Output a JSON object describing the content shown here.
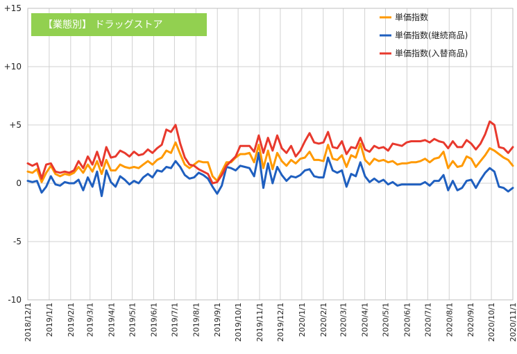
{
  "chart_data": {
    "type": "line",
    "title": "【業態別】 ドラッグストア",
    "title_bg_color": "#92d050",
    "ylim": [
      -10,
      15
    ],
    "yticks": [
      -10,
      -5,
      0,
      5,
      10,
      15
    ],
    "ytick_labels": [
      "-10",
      "-5",
      "0",
      "+5",
      "+10",
      "+15"
    ],
    "xticks": [
      "2018/12/1",
      "2019/1/1",
      "2019/2/1",
      "2019/3/1",
      "2019/4/1",
      "2019/5/1",
      "2019/6/1",
      "2019/7/1",
      "2019/8/1",
      "2019/9/1",
      "2019/10/1",
      "2019/11/1",
      "2019/12/1",
      "2020/1/1",
      "2020/2/1",
      "2020/3/1",
      "2020/4/1",
      "2020/5/1",
      "2020/6/1",
      "2020/7/1",
      "2020/8/1",
      "2020/9/1",
      "2020/10/1",
      "2020/11/1"
    ],
    "x_start": "2018-12-01",
    "x_end": "2020-11-01",
    "frequency": "weekly",
    "grid": true,
    "legend_position": "top-right",
    "series": [
      {
        "name": "単価指数",
        "color": "#ff9900",
        "values": [
          1.0,
          0.9,
          1.2,
          0.1,
          0.9,
          1.5,
          0.8,
          0.6,
          0.8,
          0.7,
          0.9,
          1.4,
          0.9,
          1.6,
          1.0,
          1.9,
          0.8,
          2.0,
          1.1,
          1.1,
          1.6,
          1.4,
          1.3,
          1.4,
          1.3,
          1.6,
          1.9,
          1.6,
          2.0,
          2.2,
          2.8,
          2.6,
          3.5,
          2.5,
          1.6,
          1.3,
          1.6,
          1.9,
          1.8,
          1.8,
          0.6,
          0.2,
          1.0,
          1.8,
          1.8,
          2.2,
          2.5,
          2.5,
          2.6,
          1.8,
          3.3,
          1.3,
          2.8,
          1.2,
          2.6,
          1.9,
          1.5,
          2.0,
          1.7,
          2.1,
          2.2,
          2.7,
          2.0,
          2.0,
          1.9,
          3.3,
          2.1,
          2.0,
          2.4,
          1.4,
          2.4,
          2.2,
          3.4,
          2.0,
          1.6,
          2.1,
          1.9,
          2.0,
          1.8,
          1.9,
          1.6,
          1.7,
          1.7,
          1.8,
          1.8,
          1.9,
          2.1,
          1.8,
          2.1,
          2.2,
          2.7,
          1.3,
          1.9,
          1.4,
          1.5,
          2.3,
          2.1,
          1.4,
          1.9,
          2.4,
          3.0,
          2.8,
          2.5,
          2.2,
          2.0,
          1.5
        ]
      },
      {
        "name": "単価指数(継続商品)",
        "color": "#1f5fbf",
        "values": [
          0.2,
          0.1,
          0.2,
          -0.8,
          -0.3,
          0.6,
          -0.1,
          -0.2,
          0.1,
          0.0,
          0.0,
          0.3,
          -0.6,
          0.5,
          -0.3,
          1.0,
          -1.1,
          1.1,
          0.1,
          -0.3,
          0.6,
          0.3,
          -0.1,
          0.2,
          0.0,
          0.5,
          0.8,
          0.5,
          1.1,
          1.0,
          1.4,
          1.3,
          1.9,
          1.4,
          0.7,
          0.4,
          0.5,
          0.9,
          0.7,
          0.4,
          -0.3,
          -0.9,
          -0.2,
          1.4,
          1.3,
          1.1,
          1.5,
          1.4,
          1.3,
          0.6,
          2.6,
          -0.4,
          1.7,
          0.0,
          1.4,
          0.7,
          0.2,
          0.6,
          0.5,
          0.7,
          1.1,
          1.2,
          0.6,
          0.5,
          0.5,
          2.2,
          1.1,
          0.9,
          1.1,
          -0.3,
          0.8,
          0.6,
          1.8,
          0.6,
          0.1,
          0.4,
          0.1,
          0.3,
          -0.1,
          0.1,
          -0.2,
          -0.1,
          -0.1,
          -0.1,
          -0.1,
          -0.1,
          0.1,
          -0.2,
          0.2,
          0.2,
          0.7,
          -0.6,
          0.2,
          -0.6,
          -0.4,
          0.2,
          0.3,
          -0.4,
          0.3,
          0.9,
          1.3,
          1.0,
          -0.3,
          -0.4,
          -0.7,
          -0.4
        ]
      },
      {
        "name": "単価指数(入替商品)",
        "color": "#e8392d",
        "values": [
          1.7,
          1.5,
          1.7,
          0.4,
          1.6,
          1.7,
          1.0,
          0.9,
          1.0,
          0.9,
          1.1,
          1.9,
          1.3,
          2.3,
          1.6,
          2.7,
          1.5,
          3.1,
          2.2,
          2.3,
          2.8,
          2.6,
          2.3,
          2.7,
          2.4,
          2.5,
          2.9,
          2.6,
          3.0,
          3.3,
          4.6,
          4.4,
          5.0,
          3.4,
          2.2,
          1.6,
          1.5,
          1.2,
          1.0,
          0.8,
          0.0,
          0.1,
          0.7,
          1.5,
          1.9,
          2.3,
          3.2,
          3.2,
          3.2,
          2.7,
          4.1,
          2.6,
          3.9,
          2.8,
          4.1,
          3.0,
          2.6,
          3.2,
          2.3,
          2.8,
          3.6,
          4.3,
          3.5,
          3.4,
          3.5,
          4.4,
          3.1,
          3.0,
          3.6,
          2.5,
          3.1,
          3.0,
          3.9,
          2.9,
          2.7,
          3.2,
          3.0,
          3.1,
          2.8,
          3.4,
          3.3,
          3.2,
          3.5,
          3.6,
          3.6,
          3.6,
          3.7,
          3.5,
          3.8,
          3.6,
          3.5,
          3.0,
          3.6,
          3.1,
          3.1,
          3.7,
          3.4,
          2.9,
          3.4,
          4.2,
          5.3,
          5.0,
          3.1,
          3.0,
          2.6,
          3.1
        ]
      }
    ]
  }
}
